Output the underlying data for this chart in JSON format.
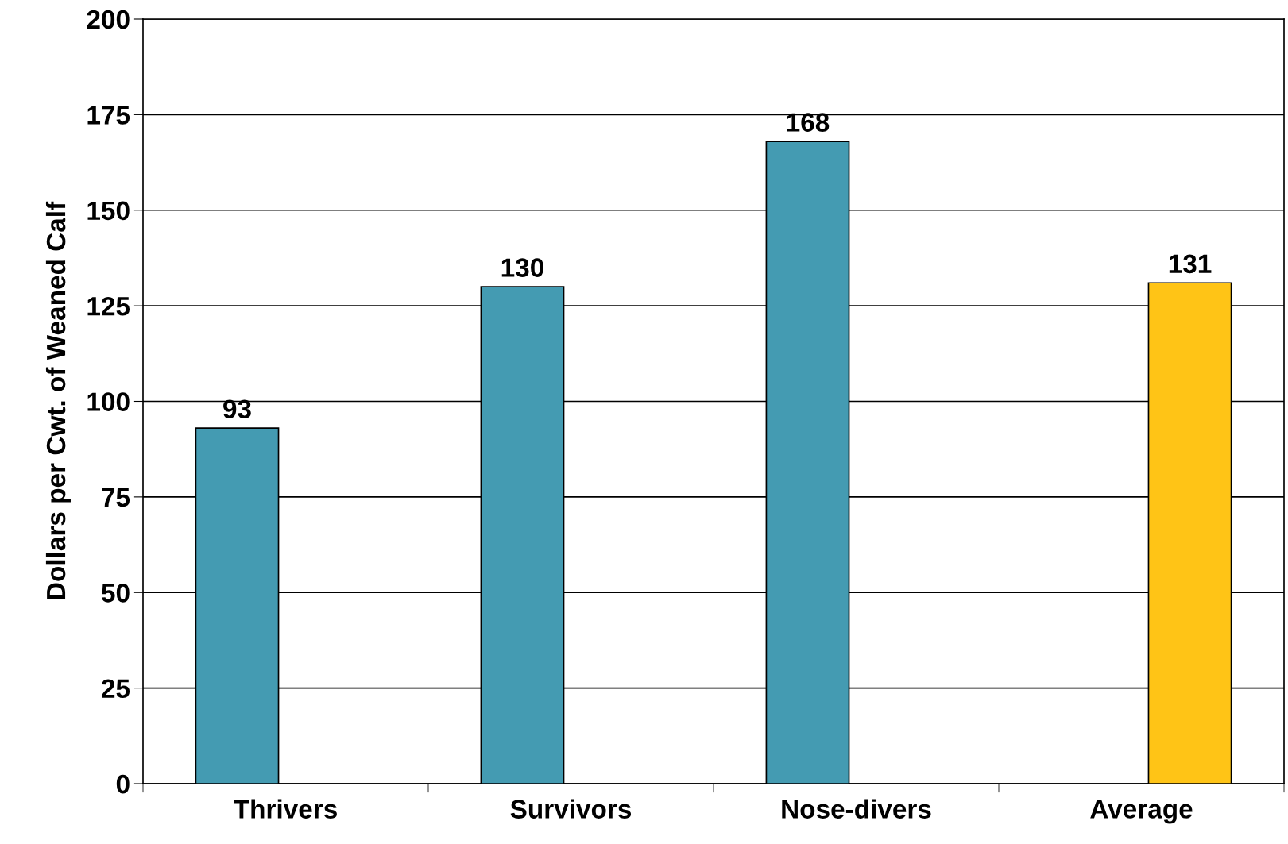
{
  "chart_data": {
    "type": "bar",
    "ylabel": "Dollars per Cwt. of Weaned Calf",
    "categories": [
      "Thrivers",
      "Survivors",
      "Nose-divers",
      "Average"
    ],
    "series": [
      {
        "color": "#449bb2",
        "values": [
          93,
          130,
          168,
          null
        ]
      },
      {
        "color": "#ffc416",
        "values": [
          null,
          null,
          null,
          131
        ]
      }
    ],
    "ylim": [
      0,
      200
    ],
    "yticks": [
      0,
      25,
      50,
      75,
      100,
      125,
      150,
      175,
      200
    ],
    "grid": "y",
    "data_labels": true,
    "legend": false
  }
}
